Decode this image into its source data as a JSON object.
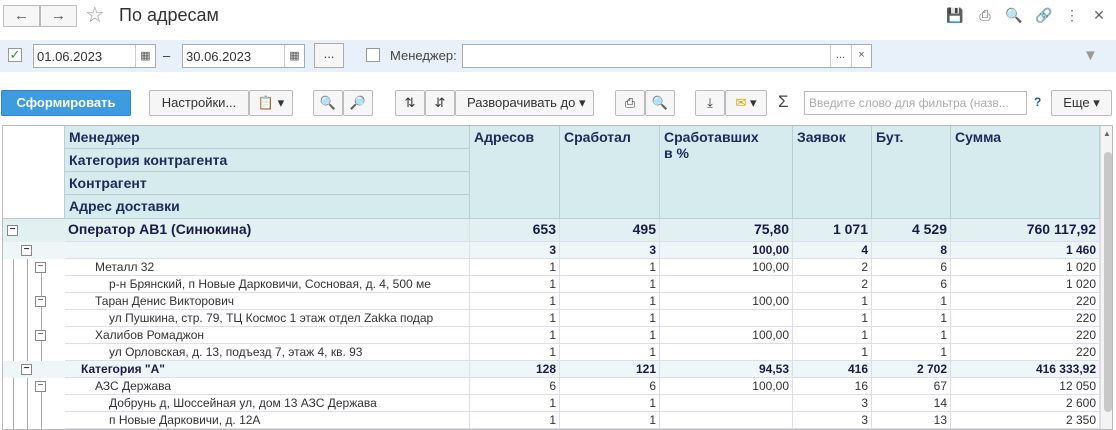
{
  "window": {
    "title": "По адресам"
  },
  "filters": {
    "date_from": "01.06.2023",
    "date_to": "30.06.2023",
    "dash": "–",
    "dots": "...",
    "manager_label": "Менеджер:",
    "manager_value": "",
    "manager_dots": "...",
    "manager_clear": "×"
  },
  "toolbar": {
    "generate": "Сформировать",
    "settings": "Настройки...",
    "expand": "Разворачивать до",
    "search_placeholder": "Введите слово для фильтра (назв...",
    "help": "?",
    "more": "Еще"
  },
  "headers": {
    "manager": "Менеджер",
    "category": "Категория контрагента",
    "counterparty": "Контрагент",
    "address": "Адрес доставки",
    "addresses": "Адресов",
    "worked": "Сработал",
    "worked_pct_1": "Сработавших",
    "worked_pct_2": "в %",
    "orders": "Заявок",
    "bottles": "Бут.",
    "sum": "Сумма"
  },
  "rows": [
    {
      "name": "Оператор АВ1 (Синюкина)",
      "a": "653",
      "w": "495",
      "p": "75,80",
      "o": "1 071",
      "b": "4 529",
      "s": "760 117,92"
    },
    {
      "name": "",
      "a": "3",
      "w": "3",
      "p": "100,00",
      "o": "4",
      "b": "8",
      "s": "1 460"
    },
    {
      "name": "Металл 32",
      "a": "1",
      "w": "1",
      "p": "100,00",
      "o": "2",
      "b": "6",
      "s": "1 020"
    },
    {
      "name": "р-н Брянский,  п Новые Дарковичи,  Сосновая,  д. 4, 500 ме",
      "a": "1",
      "w": "1",
      "p": "",
      "o": "2",
      "b": "6",
      "s": "1 020"
    },
    {
      "name": "Таран Денис Викторович",
      "a": "1",
      "w": "1",
      "p": "100,00",
      "o": "1",
      "b": "1",
      "s": "220"
    },
    {
      "name": "ул Пушкина,  стр. 79, ТЦ Космос 1 этаж отдел Zakka подар",
      "a": "1",
      "w": "1",
      "p": "",
      "o": "1",
      "b": "1",
      "s": "220"
    },
    {
      "name": "Халибов Ромаджон",
      "a": "1",
      "w": "1",
      "p": "100,00",
      "o": "1",
      "b": "1",
      "s": "220"
    },
    {
      "name": "ул Орловская,  д. 13,  подъезд 7,  этаж 4,  кв. 93",
      "a": "1",
      "w": "1",
      "p": "",
      "o": "1",
      "b": "1",
      "s": "220"
    },
    {
      "name": "Категория \"А\"",
      "a": "128",
      "w": "121",
      "p": "94,53",
      "o": "416",
      "b": "2 702",
      "s": "416 333,92"
    },
    {
      "name": "АЗС Держава",
      "a": "6",
      "w": "6",
      "p": "100,00",
      "o": "16",
      "b": "67",
      "s": "12 050"
    },
    {
      "name": "Добрунь д,  Шоссейная ул,  дом 13 АЗС Держава",
      "a": "1",
      "w": "1",
      "p": "",
      "o": "3",
      "b": "14",
      "s": "2 600"
    },
    {
      "name": "п Новые Дарковичи,  д. 12А",
      "a": "1",
      "w": "1",
      "p": "",
      "o": "3",
      "b": "13",
      "s": "2 350"
    }
  ]
}
